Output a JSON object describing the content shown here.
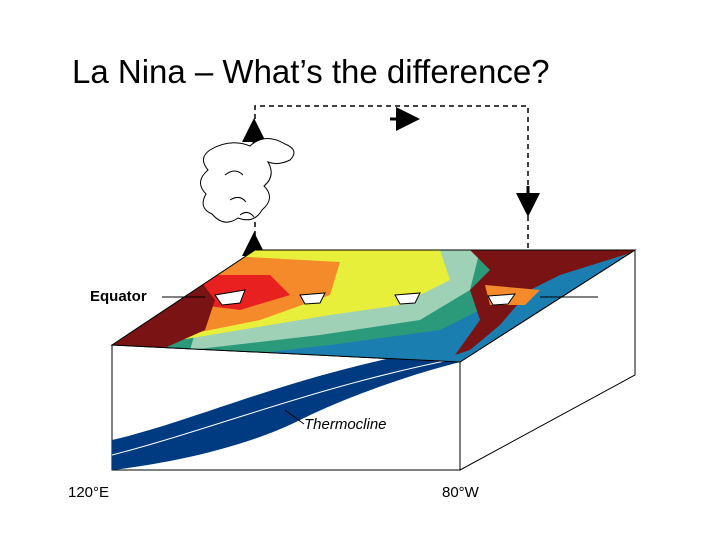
{
  "title": "La Nina – What’s the difference?",
  "labels": {
    "equator": "Equator",
    "thermocline": "Thermocline",
    "west": "120°E",
    "east": "80°W"
  }
}
